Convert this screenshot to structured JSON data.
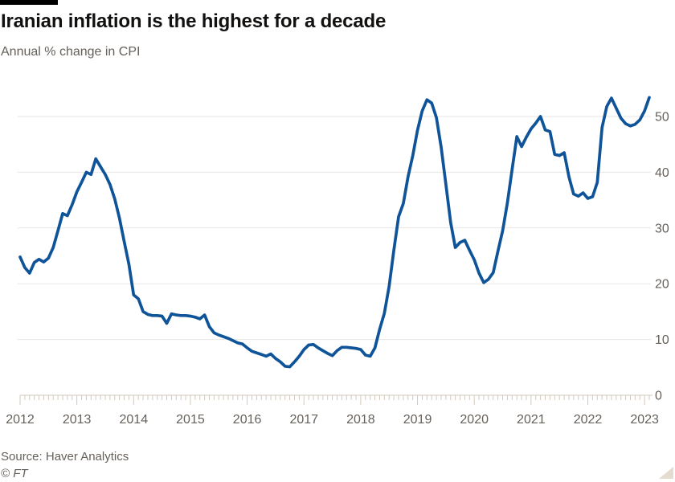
{
  "header": {
    "title": "Iranian inflation is the highest for a decade",
    "subtitle": "Annual % change in CPI"
  },
  "footer": {
    "source": "Source: Haver Analytics",
    "credit": "© FT"
  },
  "colors": {
    "accent_bar": "#000000",
    "line": "#0f5499",
    "grid": "#e9e6e1",
    "axis": "#d2c9bc",
    "text_muted": "#66605b",
    "title_text": "#121110",
    "corner_triangle": "#e3dccf"
  },
  "chart_data": {
    "type": "line",
    "title": "Iranian inflation is the highest for a decade",
    "subtitle": "Annual % change in CPI",
    "ylabel": "",
    "xlabel": "",
    "legend": "none",
    "grid": "horizontal",
    "y_axis_side": "right",
    "y_ticks": [
      0,
      10,
      20,
      30,
      40,
      50
    ],
    "ylim": [
      0,
      55
    ],
    "x_tick_labels": [
      "2012",
      "2013",
      "2014",
      "2015",
      "2016",
      "2017",
      "2018",
      "2019",
      "2020",
      "2021",
      "2022",
      "2023"
    ],
    "x_range": "2012-01 to 2023-02, monthly",
    "series": [
      {
        "name": "Iran annual % change in CPI",
        "start": "2012-01",
        "end": "2023-02",
        "monthly_values": [
          24.8,
          22.9,
          21.9,
          23.8,
          24.4,
          23.9,
          24.6,
          26.5,
          29.5,
          32.6,
          32.2,
          34.2,
          36.5,
          38.2,
          40.0,
          39.6,
          42.4,
          41.0,
          39.6,
          37.8,
          35.2,
          31.8,
          27.6,
          23.5,
          18.0,
          17.3,
          15.0,
          14.5,
          14.3,
          14.3,
          14.2,
          12.9,
          14.6,
          14.4,
          14.3,
          14.3,
          14.2,
          14.0,
          13.7,
          14.4,
          12.3,
          11.2,
          10.8,
          10.5,
          10.2,
          9.8,
          9.4,
          9.2,
          8.5,
          7.9,
          7.6,
          7.3,
          7.0,
          7.4,
          6.6,
          6.0,
          5.2,
          5.1,
          6.0,
          7.0,
          8.2,
          9.0,
          9.1,
          8.5,
          8.0,
          7.5,
          7.1,
          8.0,
          8.6,
          8.6,
          8.5,
          8.4,
          8.2,
          7.2,
          7.0,
          8.5,
          11.8,
          14.7,
          19.5,
          26.0,
          32.0,
          34.4,
          39.2,
          43.0,
          47.5,
          51.0,
          53.0,
          52.4,
          49.8,
          44.5,
          37.8,
          31.0,
          26.5,
          27.4,
          27.8,
          26.0,
          24.3,
          21.9,
          20.2,
          20.8,
          22.0,
          25.8,
          29.5,
          34.5,
          40.5,
          46.4,
          44.6,
          46.3,
          47.8,
          48.8,
          50.0,
          47.6,
          47.3,
          43.2,
          43.0,
          43.5,
          39.2,
          36.1,
          35.7,
          36.3,
          35.3,
          35.6,
          38.2,
          48.0,
          51.8,
          53.3,
          51.5,
          49.7,
          48.7,
          48.3,
          48.6,
          49.4,
          51.0,
          53.4
        ]
      }
    ]
  }
}
